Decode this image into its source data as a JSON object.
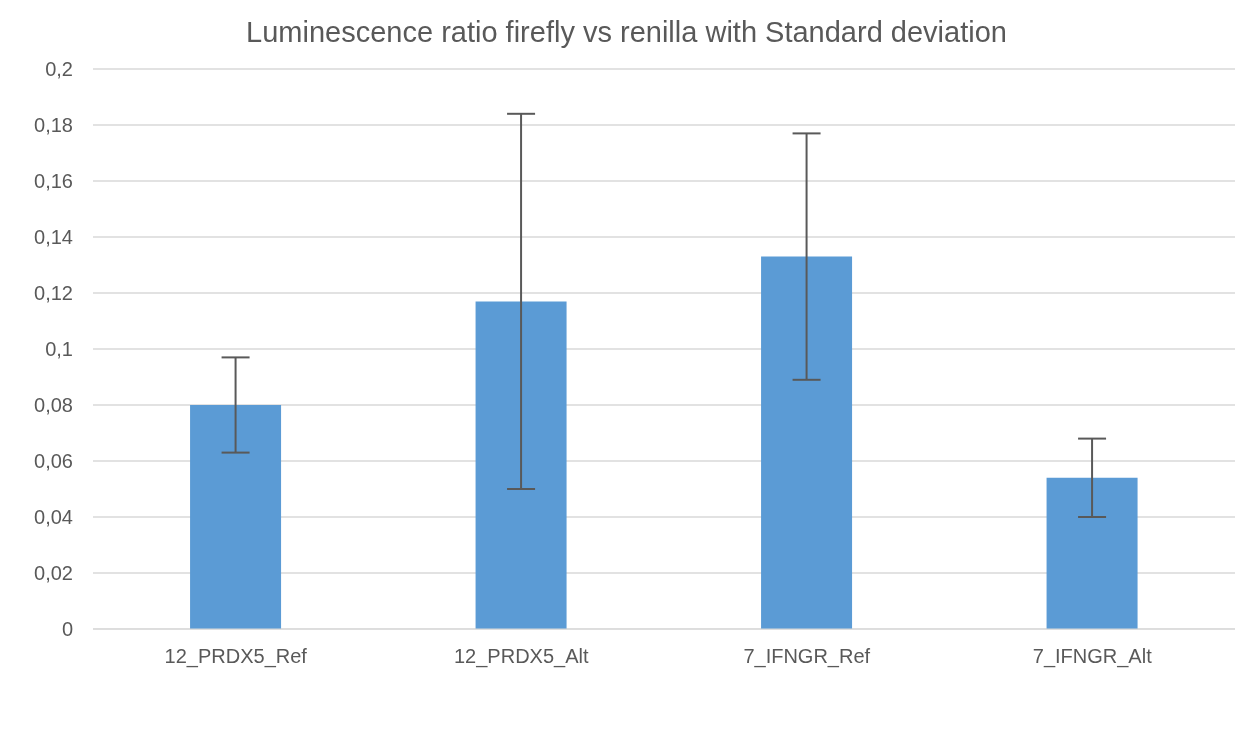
{
  "chart_data": {
    "type": "bar",
    "title": "Luminescence ratio firefly vs renilla with Standard deviation",
    "categories": [
      "12_PRDX5_Ref",
      "12_PRDX5_Alt",
      "7_IFNGR_Ref",
      "7_IFNGR_Alt"
    ],
    "values": [
      0.08,
      0.117,
      0.133,
      0.054
    ],
    "errors": [
      0.017,
      0.067,
      0.044,
      0.014
    ],
    "color": "#5b9bd5",
    "ylim": [
      0,
      0.2
    ],
    "yticks": [
      {
        "value": 0,
        "label": "0"
      },
      {
        "value": 0.02,
        "label": "0,02"
      },
      {
        "value": 0.04,
        "label": "0,04"
      },
      {
        "value": 0.06,
        "label": "0,06"
      },
      {
        "value": 0.08,
        "label": "0,08"
      },
      {
        "value": 0.1,
        "label": "0,1"
      },
      {
        "value": 0.12,
        "label": "0,12"
      },
      {
        "value": 0.14,
        "label": "0,14"
      },
      {
        "value": 0.16,
        "label": "0,16"
      },
      {
        "value": 0.18,
        "label": "0,18"
      },
      {
        "value": 0.2,
        "label": "0,2"
      }
    ],
    "grid": "y"
  }
}
